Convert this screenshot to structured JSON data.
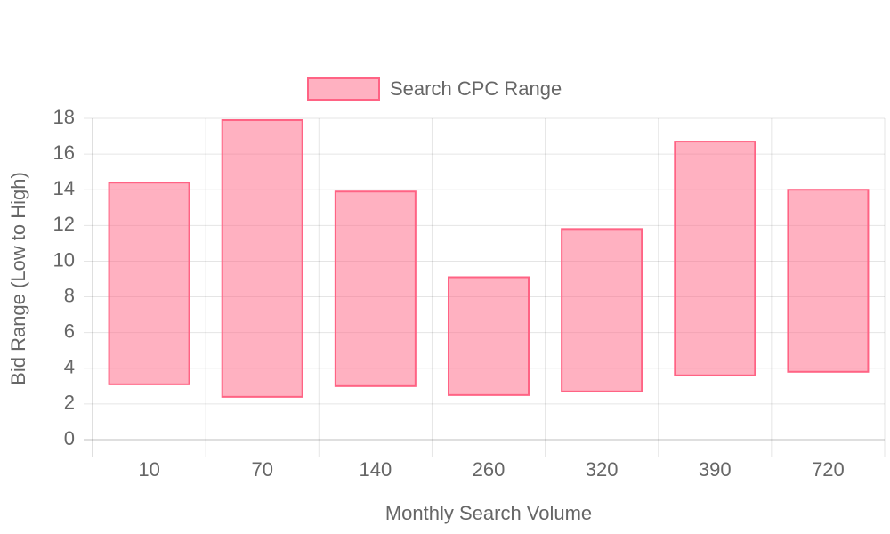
{
  "chart_data": {
    "type": "floating-bar",
    "x_label": "Monthly Search Volume",
    "y_label": "Bid Range (Low to High)",
    "categories": [
      "10",
      "70",
      "140",
      "260",
      "320",
      "390",
      "720"
    ],
    "series": [
      {
        "name": "Search CPC Range",
        "color": "#ff6384",
        "low": [
          3.1,
          2.4,
          3.0,
          2.5,
          2.7,
          3.6,
          3.8
        ],
        "high": [
          14.4,
          17.9,
          13.9,
          9.1,
          11.8,
          16.7,
          14.0
        ]
      }
    ],
    "ylim": [
      0,
      18
    ],
    "yticks": [
      0,
      2,
      4,
      6,
      8,
      10,
      12,
      14,
      16,
      18
    ],
    "grid": true,
    "legend": "top"
  }
}
